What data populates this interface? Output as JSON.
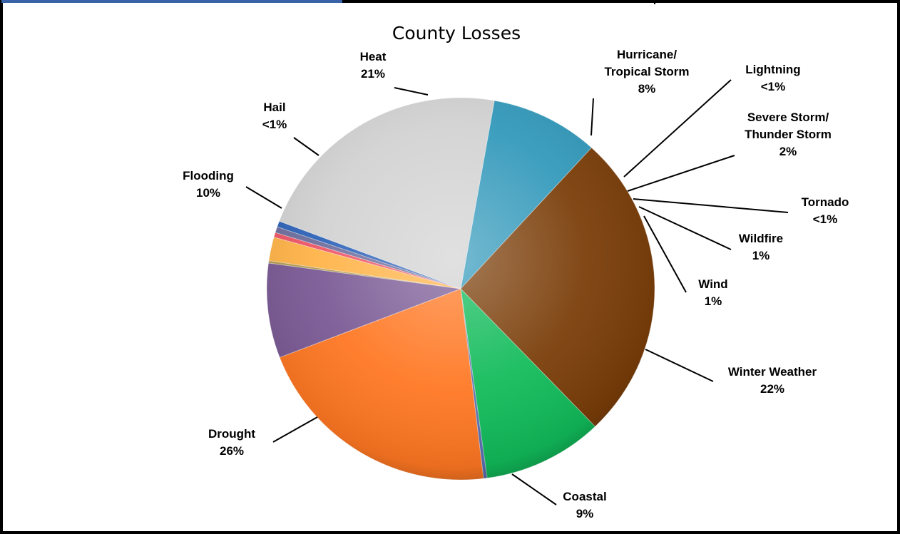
{
  "chart_data": {
    "type": "pie",
    "title": "County Losses",
    "slices": [
      {
        "name": "Coastal",
        "value": 9,
        "label": "9%",
        "color": "#3399BB"
      },
      {
        "name": "Drought",
        "value": 26,
        "label": "26%",
        "color": "#7A3D08"
      },
      {
        "name": "Flooding",
        "value": 10,
        "label": "10%",
        "color": "#11BB5A"
      },
      {
        "name": "Hail",
        "value": 0.3,
        "label": "<1%",
        "color": "#5A6FB0"
      },
      {
        "name": "Heat",
        "value": 21,
        "label": "21%",
        "color": "#FF7722"
      },
      {
        "name": "Hurricane/ Tropical Storm",
        "value": 8,
        "label": "8%",
        "color": "#7A5A95"
      },
      {
        "name": "Lightning",
        "value": 0.2,
        "label": "<1%",
        "color": "#B39B50"
      },
      {
        "name": "Severe Storm/ Thunder Storm",
        "value": 2,
        "label": "2%",
        "color": "#FFB347"
      },
      {
        "name": "Tornado",
        "value": 0.4,
        "label": "<1%",
        "color": "#EE5566"
      },
      {
        "name": "Wildfire",
        "value": 0.5,
        "label": "1%",
        "color": "#6E6E9E"
      },
      {
        "name": "Wind",
        "value": 0.5,
        "label": "1%",
        "color": "#2E63B8"
      },
      {
        "name": "Winter Weather",
        "value": 22,
        "label": "22%",
        "color": "#D2D2D2"
      }
    ],
    "legend": "none",
    "data_labels": "outside, with leader lines"
  }
}
